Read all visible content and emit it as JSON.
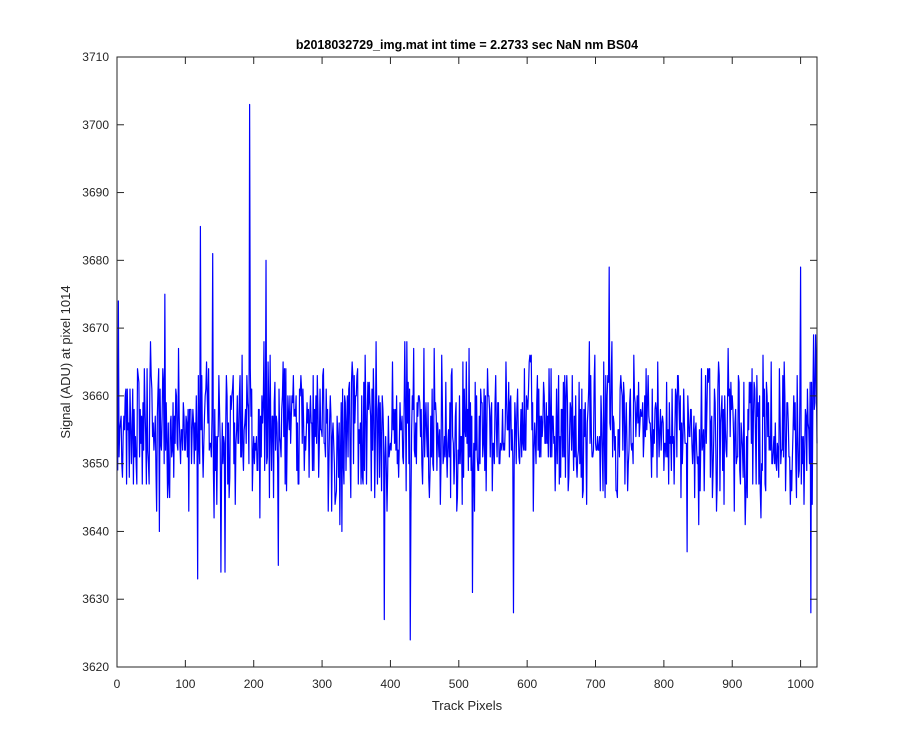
{
  "chart_data": {
    "type": "line",
    "title": "b2018032729_img.mat int time = 2.2733 sec  NaN nm BS04",
    "xlabel": "Track Pixels",
    "ylabel": "Signal (ADU) at pixel 1014",
    "xlim": [
      0,
      1024
    ],
    "ylim": [
      3620,
      3710
    ],
    "xticks": [
      0,
      100,
      200,
      300,
      400,
      500,
      600,
      700,
      800,
      900,
      1000
    ],
    "yticks": [
      3620,
      3630,
      3640,
      3650,
      3660,
      3670,
      3680,
      3690,
      3700,
      3710
    ],
    "grid": false,
    "legend": "none",
    "series": [
      {
        "color": "#0000ff",
        "x_start": 1,
        "x_step": 1,
        "baseline": 3655,
        "noise_amplitude": 5.5,
        "notable_points": [
          {
            "x": 2,
            "y": 3674
          },
          {
            "x": 70,
            "y": 3675
          },
          {
            "x": 118,
            "y": 3633
          },
          {
            "x": 122,
            "y": 3685
          },
          {
            "x": 140,
            "y": 3681
          },
          {
            "x": 152,
            "y": 3634
          },
          {
            "x": 158,
            "y": 3634
          },
          {
            "x": 194,
            "y": 3703
          },
          {
            "x": 218,
            "y": 3680
          },
          {
            "x": 236,
            "y": 3635
          },
          {
            "x": 391,
            "y": 3627
          },
          {
            "x": 429,
            "y": 3624
          },
          {
            "x": 520,
            "y": 3631
          },
          {
            "x": 580,
            "y": 3628
          },
          {
            "x": 720,
            "y": 3679
          },
          {
            "x": 834,
            "y": 3637
          },
          {
            "x": 1000,
            "y": 3679
          },
          {
            "x": 1015,
            "y": 3628
          },
          {
            "x": 1022,
            "y": 3669
          }
        ]
      }
    ]
  }
}
